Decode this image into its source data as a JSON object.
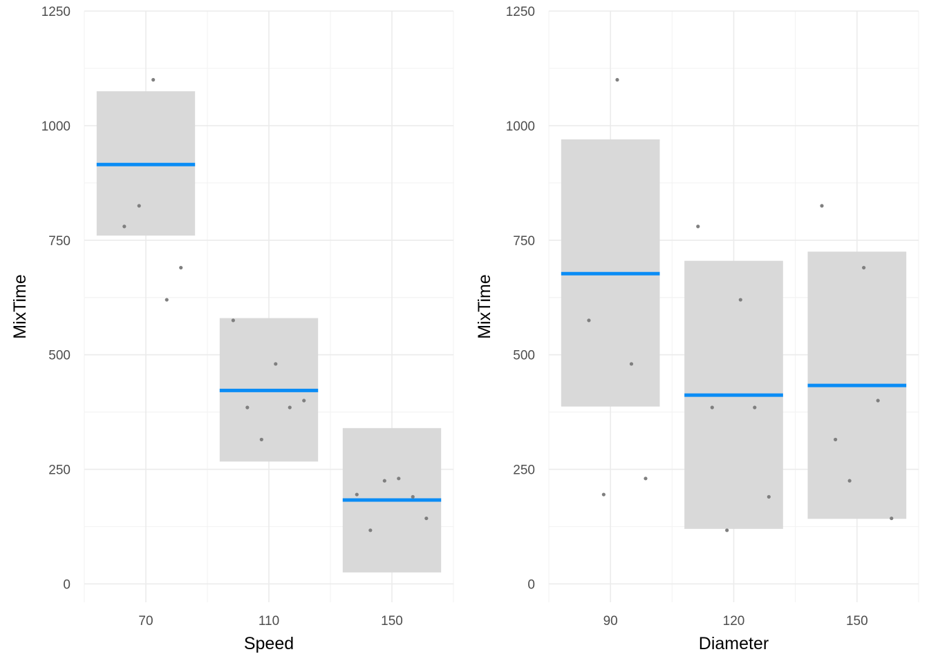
{
  "colors": {
    "grid_major": "#ebebeb",
    "grid_minor": "#f3f3f3",
    "band": "#d9d9d9",
    "mean_line": "#0a8cf5",
    "point": "#7f7f7f",
    "tick_text": "#4d4d4d",
    "axis_title": "#000000"
  },
  "chart_data": [
    {
      "type": "scatter",
      "overlay": "mean line with interval band per group",
      "xlabel": "Speed",
      "ylabel": "MixTime",
      "categories": [
        "70",
        "110",
        "150"
      ],
      "yticks": [
        0,
        250,
        500,
        750,
        1000,
        1250
      ],
      "ylim": [
        -40,
        1250
      ],
      "grid": true,
      "groups": [
        {
          "category": "70",
          "mean": 915,
          "band": [
            760,
            1075
          ],
          "points": [
            {
              "x_offset": -0.35,
              "y": 780
            },
            {
              "x_offset": -0.11,
              "y": 825
            },
            {
              "x_offset": 0.12,
              "y": 1100
            },
            {
              "x_offset": 0.34,
              "y": 620
            },
            {
              "x_offset": 0.57,
              "y": 690
            }
          ]
        },
        {
          "category": "110",
          "mean": 422,
          "band": [
            267,
            580
          ],
          "points": [
            {
              "x_offset": -0.58,
              "y": 575
            },
            {
              "x_offset": -0.35,
              "y": 385
            },
            {
              "x_offset": -0.12,
              "y": 315
            },
            {
              "x_offset": 0.11,
              "y": 480
            },
            {
              "x_offset": 0.34,
              "y": 385
            },
            {
              "x_offset": 0.57,
              "y": 400
            }
          ]
        },
        {
          "category": "150",
          "mean": 183,
          "band": [
            25,
            340
          ],
          "points": [
            {
              "x_offset": -0.57,
              "y": 195
            },
            {
              "x_offset": -0.35,
              "y": 117
            },
            {
              "x_offset": -0.12,
              "y": 225
            },
            {
              "x_offset": 0.11,
              "y": 230
            },
            {
              "x_offset": 0.34,
              "y": 190
            },
            {
              "x_offset": 0.56,
              "y": 143
            }
          ]
        }
      ]
    },
    {
      "type": "scatter",
      "overlay": "mean line with interval band per group",
      "xlabel": "Diameter",
      "ylabel": "MixTime",
      "categories": [
        "90",
        "120",
        "150"
      ],
      "yticks": [
        0,
        250,
        500,
        750,
        1000,
        1250
      ],
      "ylim": [
        -40,
        1250
      ],
      "grid": true,
      "groups": [
        {
          "category": "90",
          "mean": 677,
          "band": [
            387,
            970
          ],
          "points": [
            {
              "x_offset": -0.35,
              "y": 575
            },
            {
              "x_offset": -0.11,
              "y": 195
            },
            {
              "x_offset": 0.11,
              "y": 1100
            },
            {
              "x_offset": 0.34,
              "y": 480
            },
            {
              "x_offset": 0.57,
              "y": 230
            }
          ]
        },
        {
          "category": "120",
          "mean": 412,
          "band": [
            120,
            705
          ],
          "points": [
            {
              "x_offset": -0.58,
              "y": 780
            },
            {
              "x_offset": -0.35,
              "y": 385
            },
            {
              "x_offset": -0.11,
              "y": 117
            },
            {
              "x_offset": 0.11,
              "y": 620
            },
            {
              "x_offset": 0.34,
              "y": 385
            },
            {
              "x_offset": 0.57,
              "y": 190
            }
          ]
        },
        {
          "category": "150",
          "mean": 433,
          "band": [
            142,
            725
          ],
          "points": [
            {
              "x_offset": -0.57,
              "y": 825
            },
            {
              "x_offset": -0.35,
              "y": 315
            },
            {
              "x_offset": -0.12,
              "y": 225
            },
            {
              "x_offset": 0.11,
              "y": 690
            },
            {
              "x_offset": 0.34,
              "y": 400
            },
            {
              "x_offset": 0.56,
              "y": 143
            }
          ]
        }
      ]
    }
  ]
}
